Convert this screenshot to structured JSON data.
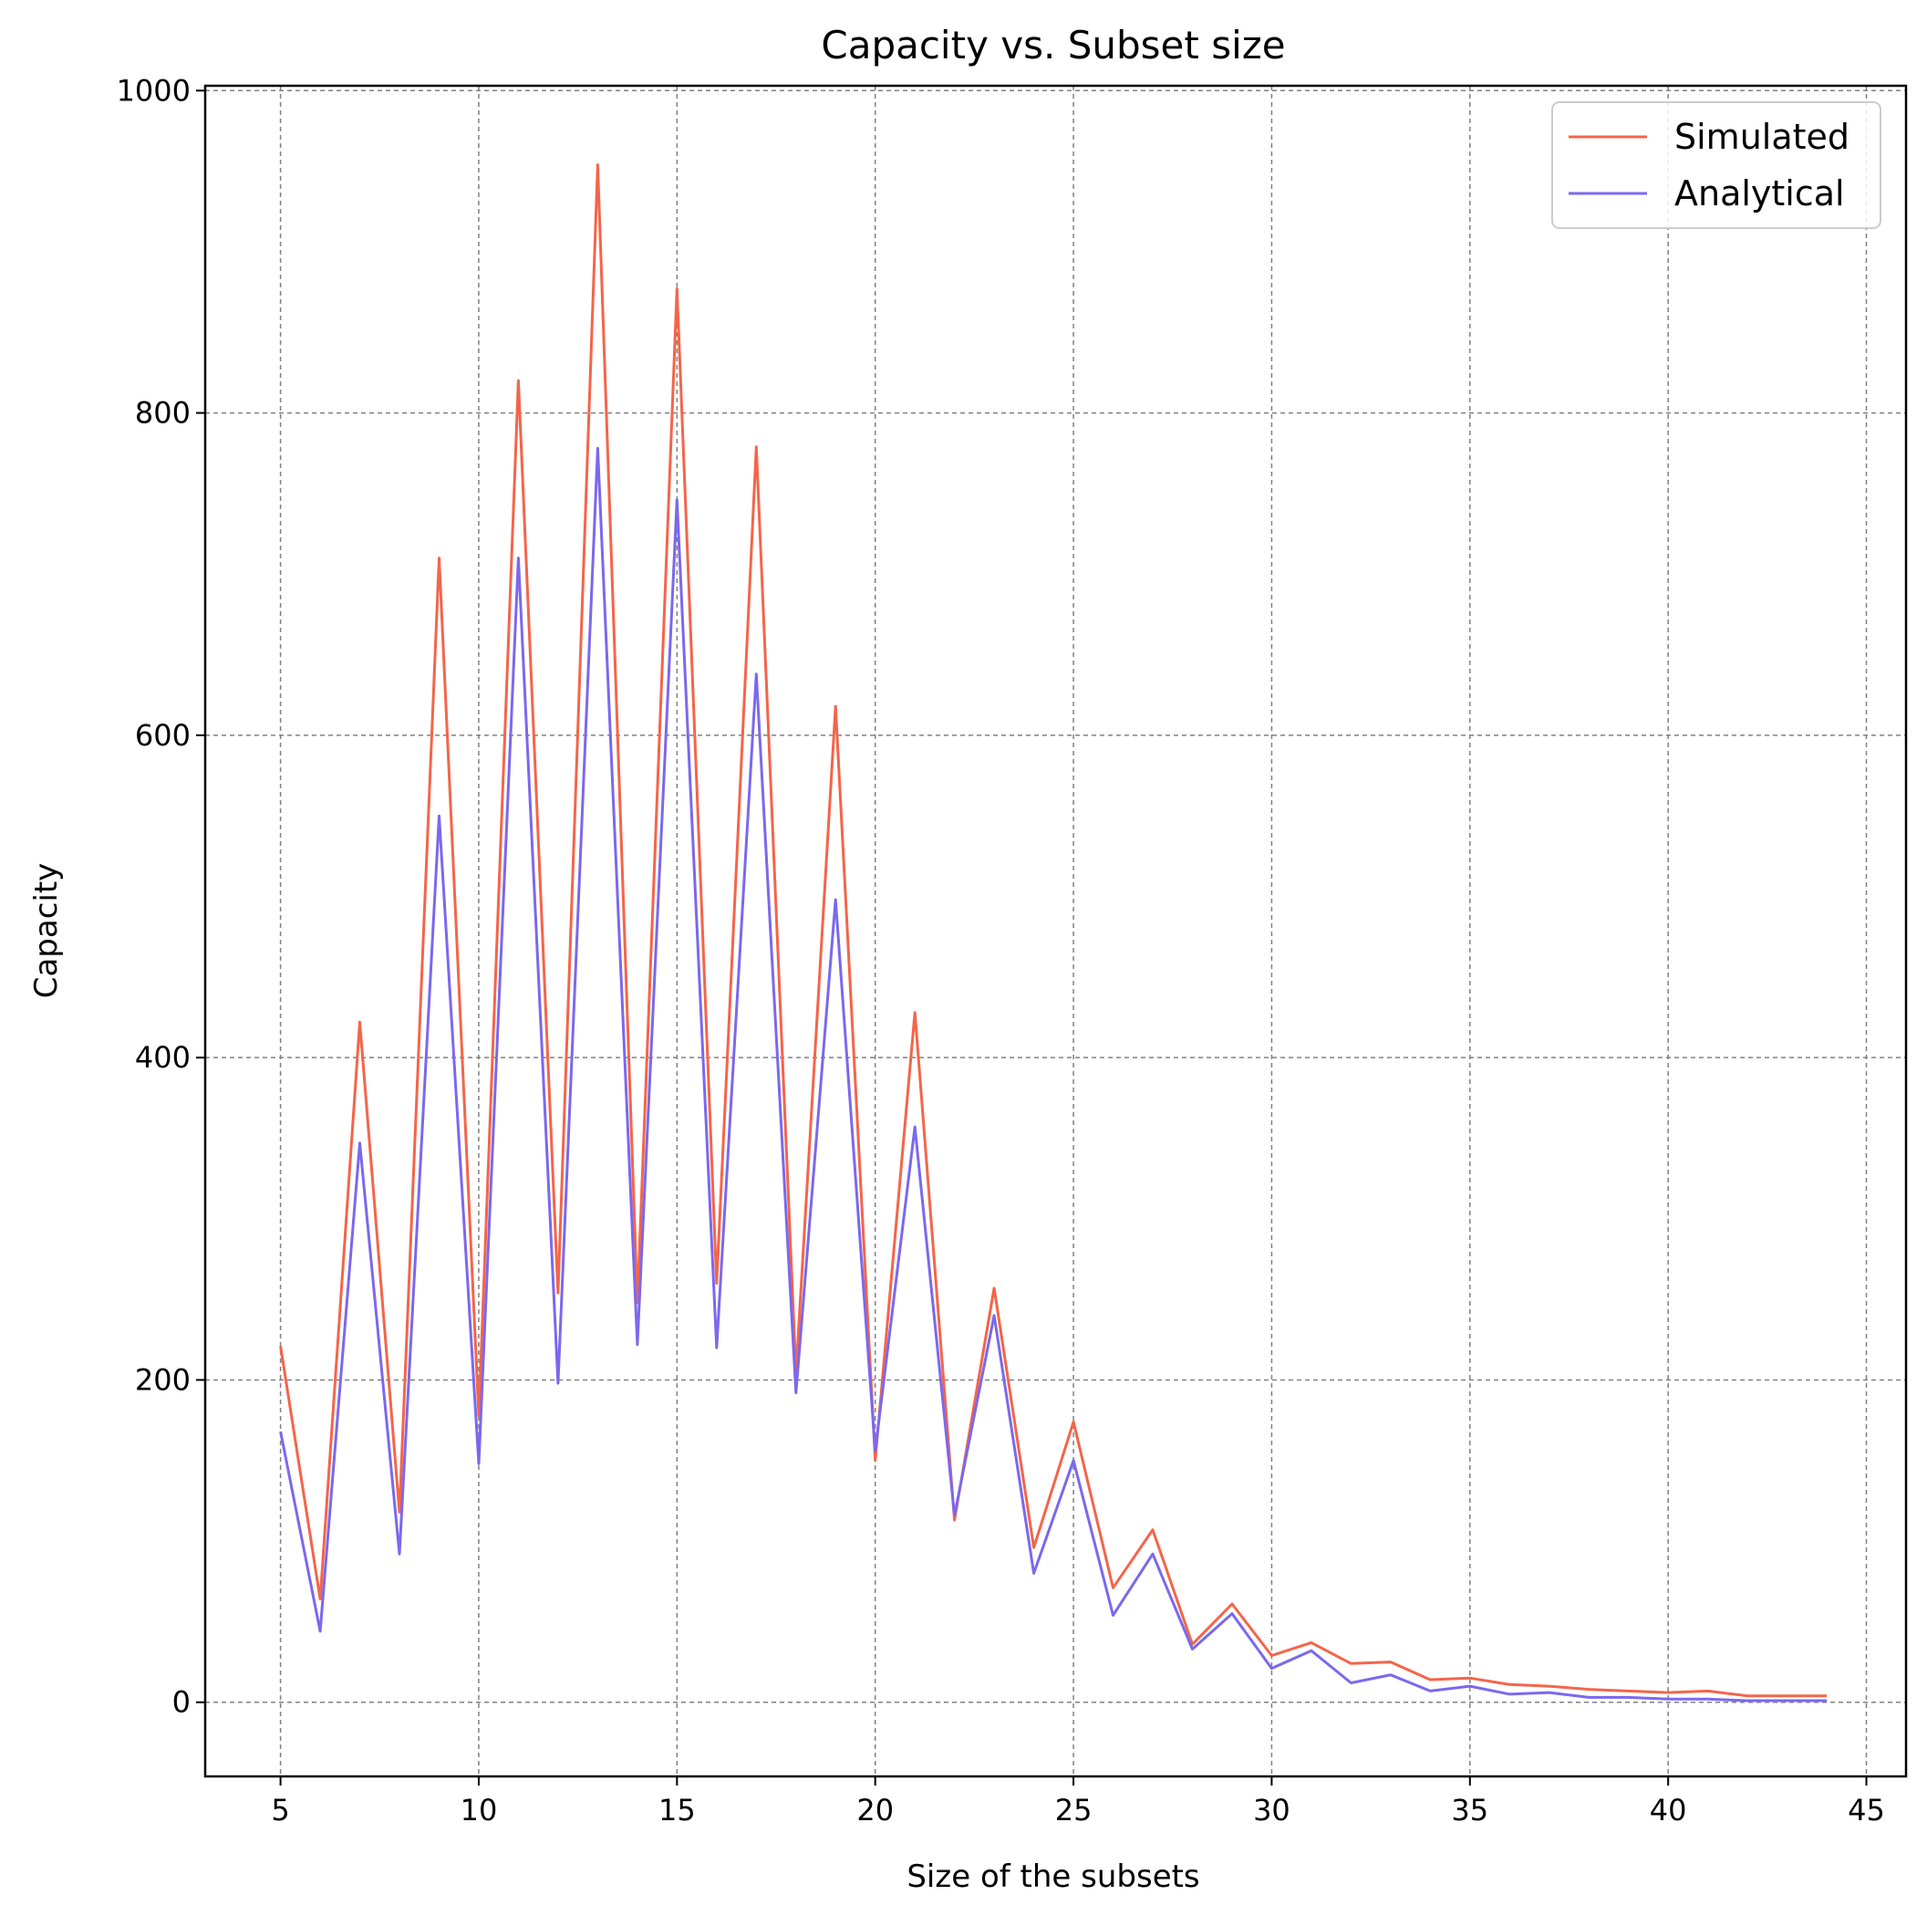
{
  "chart_data": {
    "type": "line",
    "title": "Capacity vs. Subset size",
    "xlabel": "Size of the subsets",
    "ylabel": "Capacity",
    "xlim": [
      3.1,
      46.0
    ],
    "ylim": [
      -46,
      1003
    ],
    "xticks": [
      5,
      10,
      15,
      20,
      25,
      30,
      35,
      40,
      45
    ],
    "yticks": [
      0,
      200,
      400,
      600,
      800,
      1000
    ],
    "grid": true,
    "legend_position": "top-right",
    "x": [
      5,
      6,
      7,
      8,
      9,
      10,
      11,
      12,
      13,
      14,
      15,
      16,
      17,
      18,
      19,
      20,
      21,
      22,
      23,
      24,
      25,
      26,
      27,
      28,
      29,
      30,
      31,
      32,
      33,
      34,
      35,
      36,
      37,
      38,
      39,
      40,
      41,
      42,
      43,
      44
    ],
    "series": [
      {
        "name": "Simulated",
        "color": "#f4654a",
        "values": [
          221,
          64,
          422,
          118,
          710,
          178,
          820,
          254,
          954,
          248,
          877,
          260,
          779,
          204,
          618,
          150,
          428,
          113,
          257,
          96,
          174,
          71,
          107,
          36,
          61,
          29,
          37,
          24,
          25,
          14,
          15,
          11,
          10,
          8,
          7,
          6,
          7,
          4,
          4,
          4
        ]
      },
      {
        "name": "Analytical",
        "color": "#7b68ee",
        "values": [
          168,
          44,
          347,
          92,
          550,
          148,
          710,
          198,
          778,
          222,
          746,
          220,
          638,
          192,
          498,
          156,
          357,
          116,
          240,
          80,
          150,
          54,
          92,
          33,
          55,
          21,
          32,
          12,
          17,
          7,
          10,
          5,
          6,
          3,
          3,
          2,
          2,
          1,
          1,
          1
        ]
      }
    ]
  }
}
